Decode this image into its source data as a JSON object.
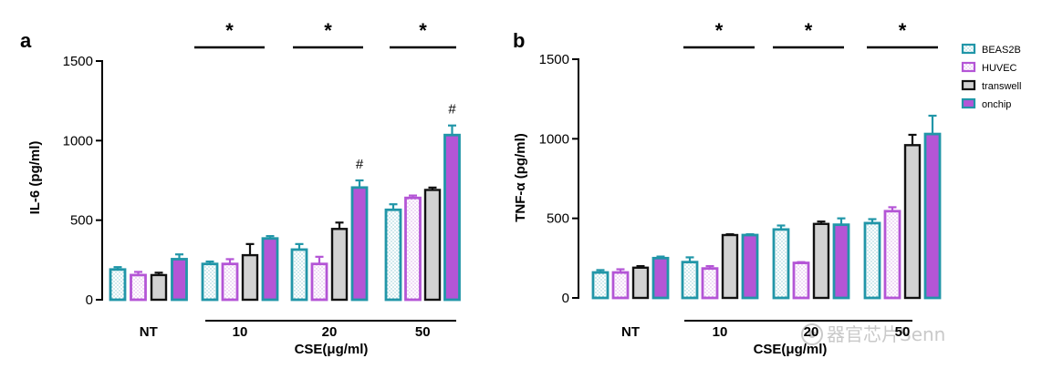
{
  "colors": {
    "BEAS2B": "#2196a8",
    "HUVEC": "#b455d6",
    "transwell": "#111111",
    "onchip_fill": "#b455d6",
    "onchip_border": "#2196a8",
    "transwell_fill": "#d2d2d2"
  },
  "legend": [
    "BEAS2B",
    "HUVEC",
    "transwell",
    "onchip"
  ],
  "watermark": "器官芯片Senn",
  "chart_data": [
    {
      "type": "bar",
      "panel_label": "a",
      "ylabel": "IL-6 (pg/ml)",
      "xlabel": "CSE(μg/ml)",
      "ylim": [
        0,
        1500
      ],
      "yticks": [
        0,
        500,
        1000,
        1500
      ],
      "categories": [
        "NT",
        "10",
        "20",
        "50"
      ],
      "series": [
        {
          "name": "BEAS2B",
          "values": [
            190,
            225,
            315,
            565
          ],
          "errors": [
            15,
            15,
            35,
            35
          ]
        },
        {
          "name": "HUVEC",
          "values": [
            155,
            225,
            225,
            640
          ],
          "errors": [
            20,
            30,
            45,
            15
          ]
        },
        {
          "name": "transwell",
          "values": [
            155,
            280,
            445,
            690
          ],
          "errors": [
            15,
            70,
            40,
            15
          ]
        },
        {
          "name": "onchip",
          "values": [
            255,
            385,
            705,
            1035
          ],
          "errors": [
            30,
            15,
            45,
            60
          ]
        }
      ],
      "significance": [
        {
          "symbol": "*",
          "category": "10"
        },
        {
          "symbol": "*",
          "category": "20"
        },
        {
          "symbol": "*",
          "category": "50"
        }
      ],
      "bar_annotations": [
        {
          "symbol": "#",
          "category": "20",
          "series": "onchip"
        },
        {
          "symbol": "#",
          "category": "50",
          "series": "onchip"
        }
      ]
    },
    {
      "type": "bar",
      "panel_label": "b",
      "ylabel": "TNF-α (pg/ml)",
      "xlabel": "CSE(μg/ml)",
      "ylim": [
        0,
        1500
      ],
      "yticks": [
        0,
        500,
        1000,
        1500
      ],
      "categories": [
        "NT",
        "10",
        "20",
        "50"
      ],
      "series": [
        {
          "name": "BEAS2B",
          "values": [
            160,
            225,
            430,
            470
          ],
          "errors": [
            15,
            30,
            25,
            25
          ]
        },
        {
          "name": "HUVEC",
          "values": [
            160,
            185,
            220,
            545
          ],
          "errors": [
            20,
            15,
            5,
            25
          ]
        },
        {
          "name": "transwell",
          "values": [
            190,
            395,
            465,
            960
          ],
          "errors": [
            10,
            5,
            15,
            65
          ]
        },
        {
          "name": "onchip",
          "values": [
            250,
            395,
            460,
            1030
          ],
          "errors": [
            10,
            5,
            40,
            115
          ]
        }
      ],
      "significance": [
        {
          "symbol": "*",
          "category": "10"
        },
        {
          "symbol": "*",
          "category": "20"
        },
        {
          "symbol": "*",
          "category": "50"
        }
      ],
      "bar_annotations": []
    }
  ]
}
